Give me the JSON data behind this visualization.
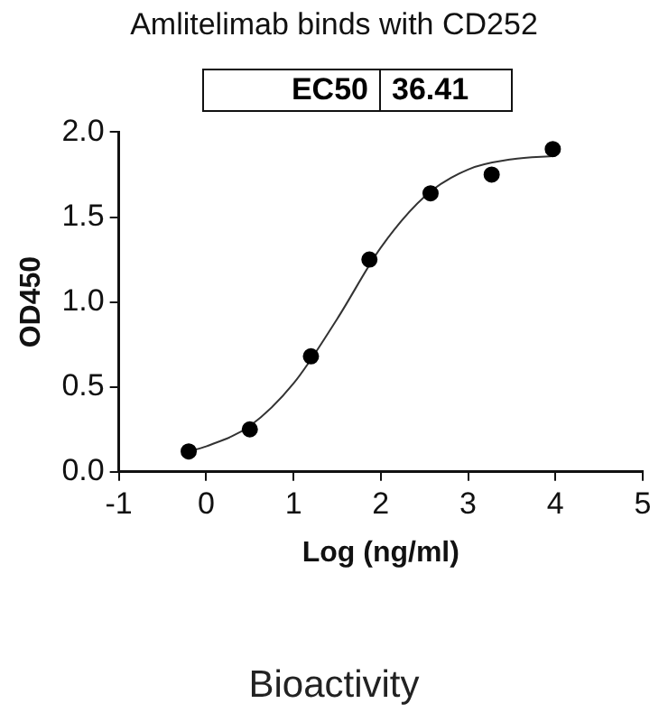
{
  "chart_data": {
    "type": "scatter",
    "title": "Amlitelimab binds with CD252",
    "xlabel": "Log (ng/ml)",
    "ylabel": "OD450",
    "annotations": [
      "EC50",
      "36.41",
      "Bioactivity"
    ],
    "xlim": [
      -1,
      5
    ],
    "xticks": [
      -1,
      0,
      1,
      2,
      3,
      4,
      5
    ],
    "ylim": [
      0,
      2
    ],
    "yticks": [
      {
        "value": 0,
        "label": "0.0"
      },
      {
        "value": 0.5,
        "label": "0.5"
      },
      {
        "value": 1,
        "label": "1.0"
      },
      {
        "value": 1.5,
        "label": "1.5"
      },
      {
        "value": 2,
        "label": "2.0"
      }
    ],
    "grid": false,
    "legend": false,
    "marker": "circle",
    "series": [
      {
        "color": "#000000",
        "x": [
          -0.2,
          0.5,
          1.2,
          1.87,
          2.57,
          3.27,
          3.97
        ],
        "values": [
          0.12,
          0.25,
          0.68,
          1.25,
          1.64,
          1.75,
          1.9
        ]
      },
      {
        "type": "line",
        "color": "#333333",
        "marker": "none",
        "line_style": "solid",
        "x": [
          -0.2,
          0,
          0.5,
          1,
          1.5,
          2,
          2.5,
          3,
          3.5,
          4
        ],
        "values": [
          0.12,
          0.15,
          0.27,
          0.52,
          0.9,
          1.32,
          1.62,
          1.78,
          1.84,
          1.86
        ]
      }
    ]
  }
}
